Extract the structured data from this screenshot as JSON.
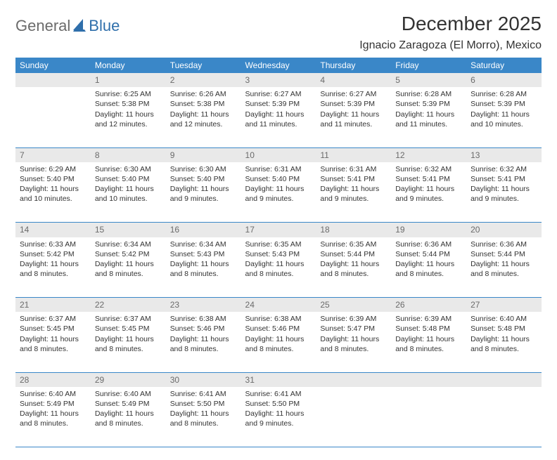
{
  "logo": {
    "general": "General",
    "blue": "Blue"
  },
  "title": "December 2025",
  "location": "Ignacio Zaragoza (El Morro), Mexico",
  "colors": {
    "header_bg": "#3a87c8",
    "header_text": "#ffffff",
    "daynum_bg": "#e9e9e9",
    "daynum_text": "#6b6b6b",
    "rule": "#3a87c8",
    "body_text": "#333333",
    "logo_gray": "#6b6b6b",
    "logo_blue": "#2f6fab"
  },
  "day_headers": [
    "Sunday",
    "Monday",
    "Tuesday",
    "Wednesday",
    "Thursday",
    "Friday",
    "Saturday"
  ],
  "weeks": [
    [
      {
        "num": "",
        "lines": []
      },
      {
        "num": "1",
        "lines": [
          "Sunrise: 6:25 AM",
          "Sunset: 5:38 PM",
          "Daylight: 11 hours and 12 minutes."
        ]
      },
      {
        "num": "2",
        "lines": [
          "Sunrise: 6:26 AM",
          "Sunset: 5:38 PM",
          "Daylight: 11 hours and 12 minutes."
        ]
      },
      {
        "num": "3",
        "lines": [
          "Sunrise: 6:27 AM",
          "Sunset: 5:39 PM",
          "Daylight: 11 hours and 11 minutes."
        ]
      },
      {
        "num": "4",
        "lines": [
          "Sunrise: 6:27 AM",
          "Sunset: 5:39 PM",
          "Daylight: 11 hours and 11 minutes."
        ]
      },
      {
        "num": "5",
        "lines": [
          "Sunrise: 6:28 AM",
          "Sunset: 5:39 PM",
          "Daylight: 11 hours and 11 minutes."
        ]
      },
      {
        "num": "6",
        "lines": [
          "Sunrise: 6:28 AM",
          "Sunset: 5:39 PM",
          "Daylight: 11 hours and 10 minutes."
        ]
      }
    ],
    [
      {
        "num": "7",
        "lines": [
          "Sunrise: 6:29 AM",
          "Sunset: 5:40 PM",
          "Daylight: 11 hours and 10 minutes."
        ]
      },
      {
        "num": "8",
        "lines": [
          "Sunrise: 6:30 AM",
          "Sunset: 5:40 PM",
          "Daylight: 11 hours and 10 minutes."
        ]
      },
      {
        "num": "9",
        "lines": [
          "Sunrise: 6:30 AM",
          "Sunset: 5:40 PM",
          "Daylight: 11 hours and 9 minutes."
        ]
      },
      {
        "num": "10",
        "lines": [
          "Sunrise: 6:31 AM",
          "Sunset: 5:40 PM",
          "Daylight: 11 hours and 9 minutes."
        ]
      },
      {
        "num": "11",
        "lines": [
          "Sunrise: 6:31 AM",
          "Sunset: 5:41 PM",
          "Daylight: 11 hours and 9 minutes."
        ]
      },
      {
        "num": "12",
        "lines": [
          "Sunrise: 6:32 AM",
          "Sunset: 5:41 PM",
          "Daylight: 11 hours and 9 minutes."
        ]
      },
      {
        "num": "13",
        "lines": [
          "Sunrise: 6:32 AM",
          "Sunset: 5:41 PM",
          "Daylight: 11 hours and 9 minutes."
        ]
      }
    ],
    [
      {
        "num": "14",
        "lines": [
          "Sunrise: 6:33 AM",
          "Sunset: 5:42 PM",
          "Daylight: 11 hours and 8 minutes."
        ]
      },
      {
        "num": "15",
        "lines": [
          "Sunrise: 6:34 AM",
          "Sunset: 5:42 PM",
          "Daylight: 11 hours and 8 minutes."
        ]
      },
      {
        "num": "16",
        "lines": [
          "Sunrise: 6:34 AM",
          "Sunset: 5:43 PM",
          "Daylight: 11 hours and 8 minutes."
        ]
      },
      {
        "num": "17",
        "lines": [
          "Sunrise: 6:35 AM",
          "Sunset: 5:43 PM",
          "Daylight: 11 hours and 8 minutes."
        ]
      },
      {
        "num": "18",
        "lines": [
          "Sunrise: 6:35 AM",
          "Sunset: 5:44 PM",
          "Daylight: 11 hours and 8 minutes."
        ]
      },
      {
        "num": "19",
        "lines": [
          "Sunrise: 6:36 AM",
          "Sunset: 5:44 PM",
          "Daylight: 11 hours and 8 minutes."
        ]
      },
      {
        "num": "20",
        "lines": [
          "Sunrise: 6:36 AM",
          "Sunset: 5:44 PM",
          "Daylight: 11 hours and 8 minutes."
        ]
      }
    ],
    [
      {
        "num": "21",
        "lines": [
          "Sunrise: 6:37 AM",
          "Sunset: 5:45 PM",
          "Daylight: 11 hours and 8 minutes."
        ]
      },
      {
        "num": "22",
        "lines": [
          "Sunrise: 6:37 AM",
          "Sunset: 5:45 PM",
          "Daylight: 11 hours and 8 minutes."
        ]
      },
      {
        "num": "23",
        "lines": [
          "Sunrise: 6:38 AM",
          "Sunset: 5:46 PM",
          "Daylight: 11 hours and 8 minutes."
        ]
      },
      {
        "num": "24",
        "lines": [
          "Sunrise: 6:38 AM",
          "Sunset: 5:46 PM",
          "Daylight: 11 hours and 8 minutes."
        ]
      },
      {
        "num": "25",
        "lines": [
          "Sunrise: 6:39 AM",
          "Sunset: 5:47 PM",
          "Daylight: 11 hours and 8 minutes."
        ]
      },
      {
        "num": "26",
        "lines": [
          "Sunrise: 6:39 AM",
          "Sunset: 5:48 PM",
          "Daylight: 11 hours and 8 minutes."
        ]
      },
      {
        "num": "27",
        "lines": [
          "Sunrise: 6:40 AM",
          "Sunset: 5:48 PM",
          "Daylight: 11 hours and 8 minutes."
        ]
      }
    ],
    [
      {
        "num": "28",
        "lines": [
          "Sunrise: 6:40 AM",
          "Sunset: 5:49 PM",
          "Daylight: 11 hours and 8 minutes."
        ]
      },
      {
        "num": "29",
        "lines": [
          "Sunrise: 6:40 AM",
          "Sunset: 5:49 PM",
          "Daylight: 11 hours and 8 minutes."
        ]
      },
      {
        "num": "30",
        "lines": [
          "Sunrise: 6:41 AM",
          "Sunset: 5:50 PM",
          "Daylight: 11 hours and 8 minutes."
        ]
      },
      {
        "num": "31",
        "lines": [
          "Sunrise: 6:41 AM",
          "Sunset: 5:50 PM",
          "Daylight: 11 hours and 9 minutes."
        ]
      },
      {
        "num": "",
        "lines": []
      },
      {
        "num": "",
        "lines": []
      },
      {
        "num": "",
        "lines": []
      }
    ]
  ]
}
